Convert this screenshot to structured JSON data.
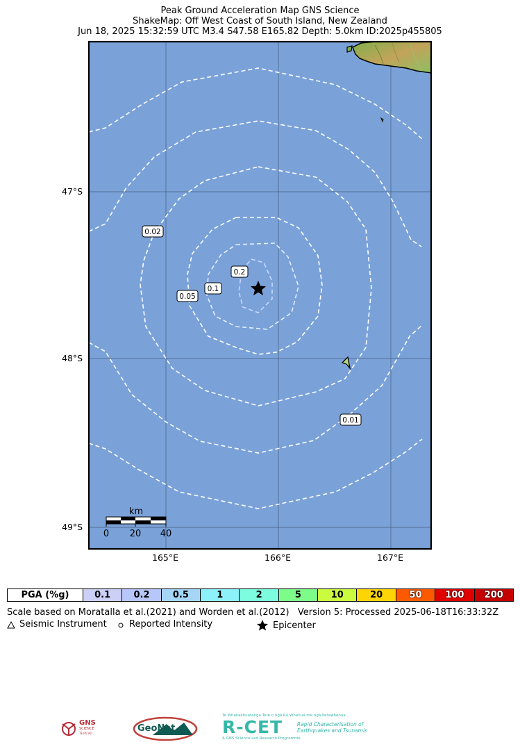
{
  "header": {
    "line1": "Peak Ground Acceleration Map GNS Science",
    "line2": "ShakeMap: Off West Coast of South Island, New Zealand",
    "line3": "Jun 18, 2025 15:32:59 UTC M3.4 S47.58 E165.82 Depth: 5.0km ID:2025p455805"
  },
  "map": {
    "lat_ticks": [
      "47°S",
      "48°S",
      "49°S"
    ],
    "lon_ticks": [
      "165°E",
      "166°E",
      "167°E"
    ],
    "contour_labels": [
      "0.02",
      "0.2",
      "0.1",
      "0.05",
      "0.01"
    ],
    "scale_bar": {
      "unit": "km",
      "ticks": [
        "0",
        "20",
        "40"
      ]
    },
    "epicenter": {
      "lat": -47.58,
      "lon": 165.82
    },
    "colors": {
      "ocean": "#7aa2d9",
      "contour": "#ffffff",
      "land_low": "#7fb04a",
      "land_high": "#c2a35a"
    }
  },
  "legend": {
    "title": "PGA (%g)",
    "items": [
      {
        "label": "0.1",
        "color": "#cdd0f6"
      },
      {
        "label": "0.2",
        "color": "#b8c7fa"
      },
      {
        "label": "0.5",
        "color": "#a5d6f8"
      },
      {
        "label": "1",
        "color": "#8df1fa"
      },
      {
        "label": "2",
        "color": "#7efce0"
      },
      {
        "label": "5",
        "color": "#7efc8a"
      },
      {
        "label": "10",
        "color": "#cbfb3e"
      },
      {
        "label": "20",
        "color": "#fdd506"
      },
      {
        "label": "50",
        "color": "#fd5a00"
      },
      {
        "label": "100",
        "color": "#e10000"
      },
      {
        "label": "200",
        "color": "#c60000"
      }
    ]
  },
  "footer": {
    "scale_note": "Scale based on Moratalla et al.(2021) and Worden et al.(2012)",
    "version": "Version 5: Processed 2025-06-18T16:33:32Z",
    "seismic_instrument": "Seismic Instrument",
    "reported_intensity": "Reported Intensity",
    "epicenter": "Epicenter"
  },
  "logos": {
    "gns_line1": "GNS",
    "gns_line2": "SCIENCE",
    "gns_line3": "TE PŪ AO",
    "geonet": "GeoNet",
    "rcet_title": "R-CET",
    "rcet_maori": "Te Whakaahuatanga Tere o ngā Rū Whenua me ngā Parawhenua",
    "rcet_sub1": "Rapid Characterisation of",
    "rcet_sub2": "Earthquakes and Tsunamis",
    "rcet_tag": "A GNS Science Led Research Programme"
  }
}
